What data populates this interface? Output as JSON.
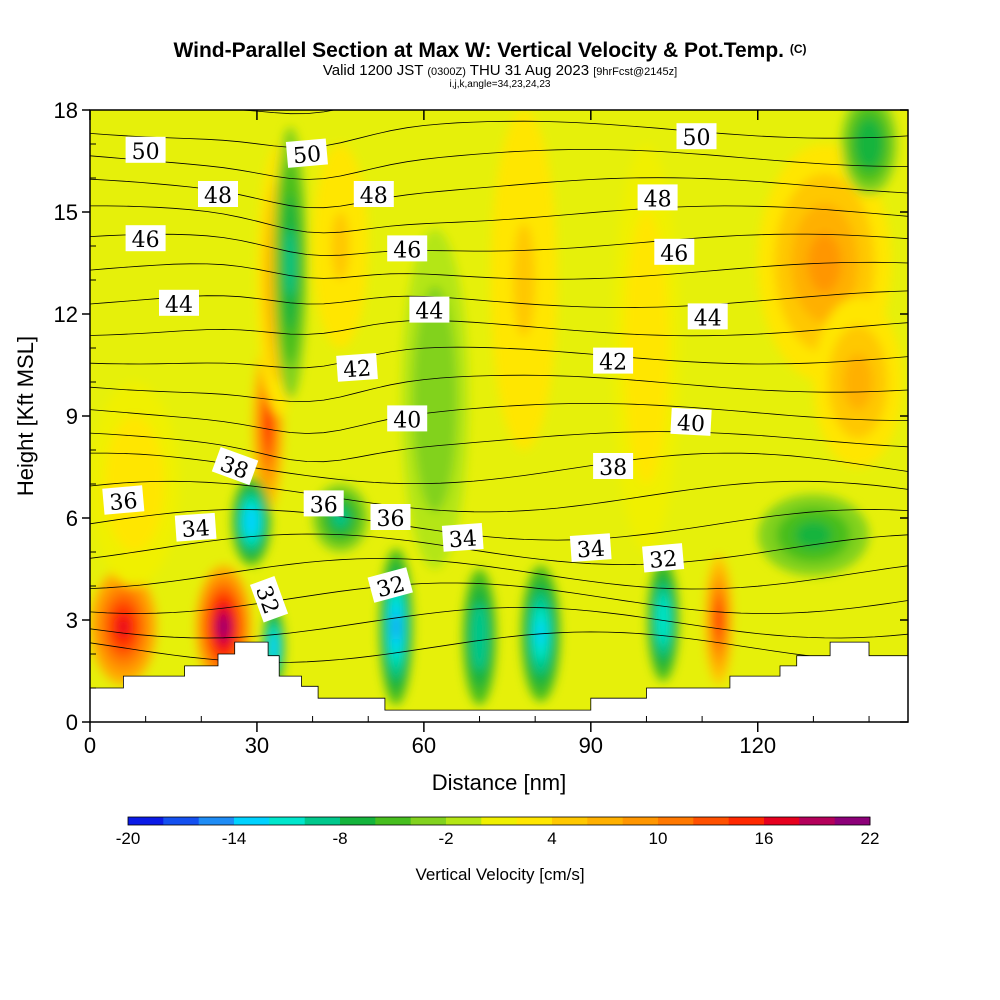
{
  "chart_data": {
    "type": "heatmap",
    "title": "Wind-Parallel Section at Max W: Vertical Velocity & Pot.Temp.",
    "title_mark": "(C)",
    "subtitle": {
      "lead": "Valid 1200 JST",
      "utc": "(0300Z)",
      "date": "THU 31 Aug 2023",
      "forecast": "[9hrFcst@2145z]"
    },
    "indices": "i,j,k,angle=34,23,24,23",
    "xlabel": "Distance [nm]",
    "ylabel": "Height [Kft MSL]",
    "xlim": [
      0,
      147
    ],
    "ylim": [
      0,
      18
    ],
    "x_ticks": [
      "0",
      "30",
      "60",
      "90",
      "120"
    ],
    "y_ticks": [
      "0",
      "3",
      "6",
      "9",
      "12",
      "15",
      "18"
    ],
    "colorbar": {
      "label": "Vertical Velocity [cm/s]",
      "ticks": [
        "-20",
        "-14",
        "-8",
        "-2",
        "4",
        "10",
        "16",
        "22"
      ],
      "levels": [
        -20,
        -18,
        -16,
        -14,
        -12,
        -10,
        -8,
        -6,
        -4,
        -2,
        0,
        2,
        4,
        6,
        8,
        10,
        12,
        14,
        16,
        18,
        20,
        22
      ],
      "colors": [
        "#0a1ae6",
        "#1450f0",
        "#1e8cf5",
        "#00d2ff",
        "#00e6cc",
        "#00c88c",
        "#14b43c",
        "#46be1e",
        "#82d21e",
        "#b4e614",
        "#f0f000",
        "#ffe600",
        "#ffc800",
        "#ffb000",
        "#ff9600",
        "#ff7800",
        "#ff5000",
        "#ff2800",
        "#e6001e",
        "#b4005a",
        "#8c0078"
      ]
    },
    "series": [
      {
        "name": "Vertical Velocity",
        "blobs": [
          {
            "x": 6,
            "y": 2.8,
            "rx": 6,
            "ry": 1.7,
            "value": 16
          },
          {
            "x": 24,
            "y": 2.8,
            "rx": 5,
            "ry": 1.8,
            "value": 20
          },
          {
            "x": 32,
            "y": 8.7,
            "rx": 2.8,
            "ry": 2.5,
            "value": 15
          },
          {
            "x": 34,
            "y": 13.0,
            "rx": 4,
            "ry": 4,
            "value": 8
          },
          {
            "x": 29,
            "y": 5.9,
            "rx": 3.5,
            "ry": 1.3,
            "value": -14
          },
          {
            "x": 33,
            "y": 2.2,
            "rx": 2,
            "ry": 1.2,
            "value": -14
          },
          {
            "x": 36,
            "y": 13.5,
            "rx": 3,
            "ry": 4,
            "value": -9
          },
          {
            "x": 55,
            "y": 2.8,
            "rx": 3,
            "ry": 2.3,
            "value": -16
          },
          {
            "x": 70,
            "y": 2.5,
            "rx": 3,
            "ry": 2.0,
            "value": -10
          },
          {
            "x": 81,
            "y": 2.6,
            "rx": 3.5,
            "ry": 2.0,
            "value": -13
          },
          {
            "x": 103,
            "y": 3.0,
            "rx": 2.8,
            "ry": 1.8,
            "value": -12
          },
          {
            "x": 113,
            "y": 3.0,
            "rx": 2.5,
            "ry": 1.9,
            "value": 14
          },
          {
            "x": 132,
            "y": 13.5,
            "rx": 12,
            "ry": 3.5,
            "value": 9
          },
          {
            "x": 138,
            "y": 10.0,
            "rx": 8,
            "ry": 2.5,
            "value": 6
          },
          {
            "x": 130,
            "y": 5.5,
            "rx": 10,
            "ry": 1.2,
            "value": -7
          },
          {
            "x": 78,
            "y": 13.0,
            "rx": 6,
            "ry": 5,
            "value": 5
          },
          {
            "x": 100,
            "y": 11.0,
            "rx": 6,
            "ry": 6,
            "value": 3
          },
          {
            "x": 45,
            "y": 6.0,
            "rx": 5,
            "ry": 1.0,
            "value": -9
          },
          {
            "x": 62,
            "y": 9.5,
            "rx": 6,
            "ry": 5,
            "value": -4
          },
          {
            "x": 8,
            "y": 7.0,
            "rx": 8,
            "ry": 3,
            "value": 3
          },
          {
            "x": 45,
            "y": 14.0,
            "rx": 5,
            "ry": 3,
            "value": 4
          },
          {
            "x": 140,
            "y": 17.0,
            "rx": 5,
            "ry": 1.5,
            "value": -8
          }
        ]
      },
      {
        "name": "Potential Temperature",
        "theta_levels": [
          31,
          32,
          33,
          34,
          35,
          36,
          37,
          38,
          39,
          40,
          41,
          42,
          43,
          44,
          45,
          46,
          47,
          48,
          49,
          50,
          51
        ],
        "labels": [
          {
            "text": "50",
            "x": 10,
            "y": 16.8,
            "rot": 0
          },
          {
            "text": "50",
            "x": 39,
            "y": 16.7,
            "rot": -5
          },
          {
            "text": "50",
            "x": 109,
            "y": 17.2,
            "rot": 0
          },
          {
            "text": "48",
            "x": 23,
            "y": 15.5,
            "rot": 0
          },
          {
            "text": "48",
            "x": 51,
            "y": 15.5,
            "rot": 0
          },
          {
            "text": "48",
            "x": 102,
            "y": 15.4,
            "rot": 0
          },
          {
            "text": "46",
            "x": 10,
            "y": 14.2,
            "rot": 0
          },
          {
            "text": "46",
            "x": 57,
            "y": 13.9,
            "rot": 0
          },
          {
            "text": "46",
            "x": 105,
            "y": 13.8,
            "rot": 0
          },
          {
            "text": "44",
            "x": 16,
            "y": 12.3,
            "rot": 0
          },
          {
            "text": "44",
            "x": 61,
            "y": 12.1,
            "rot": 0
          },
          {
            "text": "44",
            "x": 111,
            "y": 11.9,
            "rot": 0
          },
          {
            "text": "42",
            "x": 48,
            "y": 10.4,
            "rot": -4
          },
          {
            "text": "42",
            "x": 94,
            "y": 10.6,
            "rot": 0
          },
          {
            "text": "40",
            "x": 57,
            "y": 8.9,
            "rot": 0
          },
          {
            "text": "40",
            "x": 108,
            "y": 8.8,
            "rot": 3
          },
          {
            "text": "38",
            "x": 26,
            "y": 7.5,
            "rot": 20
          },
          {
            "text": "38",
            "x": 94,
            "y": 7.5,
            "rot": 0
          },
          {
            "text": "36",
            "x": 6,
            "y": 6.5,
            "rot": -5
          },
          {
            "text": "36",
            "x": 42,
            "y": 6.4,
            "rot": 0
          },
          {
            "text": "36",
            "x": 54,
            "y": 6.0,
            "rot": 0
          },
          {
            "text": "34",
            "x": 19,
            "y": 5.7,
            "rot": -4
          },
          {
            "text": "34",
            "x": 67,
            "y": 5.4,
            "rot": -4
          },
          {
            "text": "34",
            "x": 90,
            "y": 5.1,
            "rot": -4
          },
          {
            "text": "32",
            "x": 103,
            "y": 4.8,
            "rot": -5
          },
          {
            "text": "32",
            "x": 54,
            "y": 4.0,
            "rot": -15
          },
          {
            "text": "32",
            "x": 32,
            "y": 3.6,
            "rot": 70
          }
        ]
      }
    ],
    "terrain": [
      [
        0,
        1.0
      ],
      [
        6,
        1.0
      ],
      [
        6,
        1.35
      ],
      [
        17,
        1.35
      ],
      [
        17,
        1.65
      ],
      [
        23,
        1.65
      ],
      [
        23,
        2.0
      ],
      [
        26,
        2.0
      ],
      [
        26,
        2.35
      ],
      [
        32,
        2.35
      ],
      [
        32,
        1.95
      ],
      [
        34,
        1.95
      ],
      [
        34,
        1.35
      ],
      [
        38,
        1.35
      ],
      [
        38,
        1.05
      ],
      [
        41,
        1.05
      ],
      [
        41,
        0.7
      ],
      [
        53,
        0.7
      ],
      [
        53,
        0.35
      ],
      [
        90,
        0.35
      ],
      [
        90,
        0.7
      ],
      [
        100,
        0.7
      ],
      [
        100,
        1.0
      ],
      [
        115,
        1.0
      ],
      [
        115,
        1.35
      ],
      [
        124,
        1.35
      ],
      [
        124,
        1.65
      ],
      [
        127,
        1.65
      ],
      [
        127,
        1.95
      ],
      [
        133,
        1.95
      ],
      [
        133,
        2.35
      ],
      [
        140,
        2.35
      ],
      [
        140,
        1.95
      ],
      [
        147,
        1.95
      ]
    ]
  }
}
